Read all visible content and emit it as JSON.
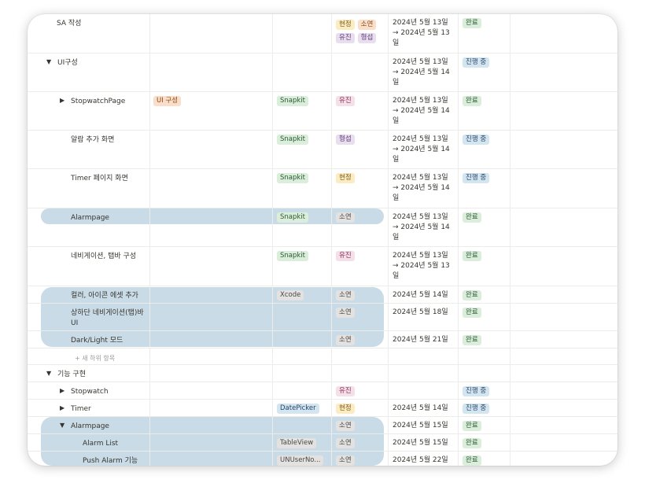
{
  "colors": {
    "highlight": "#c9dbe6",
    "tag_yellow_bg": "#fbecc2",
    "tag_yellow_fg": "#7a5b1a",
    "tag_orange_bg": "#fadec9",
    "tag_orange_fg": "#8a4a18",
    "tag_purple_bg": "#e8deee",
    "tag_purple_fg": "#5e3d7a",
    "tag_pink_bg": "#f5e0e9",
    "tag_pink_fg": "#8a2f56",
    "tag_green_bg": "#dbeddb",
    "tag_green_fg": "#2b5b33",
    "tag_blue_bg": "#d3e5ef",
    "tag_blue_fg": "#28456c",
    "tag_gray_bg": "#e3e2e0",
    "tag_gray_fg": "#4a4946"
  },
  "rows": [
    {
      "name": "SA 작성",
      "arrow": "",
      "c1": [],
      "c2": [],
      "c3": [
        {
          "t": "현정",
          "c": "yellow"
        },
        {
          "t": "소연",
          "c": "orange"
        },
        {
          "t": "유진",
          "c": "purple"
        },
        {
          "t": "형섭",
          "c": "purple"
        }
      ],
      "date": [
        "2024년 5월 13일",
        "→ 2024년 5월 13",
        "일"
      ],
      "status": {
        "t": "완료",
        "c": "green"
      }
    },
    {
      "name": "UI구성",
      "arrow": "▼",
      "c1": [],
      "c2": [],
      "c3": [],
      "date": [
        "2024년 5월 13일",
        "→ 2024년 5월 14",
        "일"
      ],
      "status": {
        "t": "진행 중",
        "c": "blue"
      }
    },
    {
      "name": "StopwatchPage",
      "arrow": "▶",
      "c1": [
        {
          "t": "UI 구성",
          "c": "orange"
        }
      ],
      "c2": [
        {
          "t": "Snapkit",
          "c": "green"
        }
      ],
      "c3": [
        {
          "t": "유진",
          "c": "pink"
        }
      ],
      "date": [
        "2024년 5월 13일",
        "→ 2024년 5월 14",
        "일"
      ],
      "status": {
        "t": "완료",
        "c": "green"
      }
    },
    {
      "name": "알람 추가 화면",
      "arrow": "",
      "c1": [],
      "c2": [
        {
          "t": "Snapkit",
          "c": "green"
        }
      ],
      "c3": [
        {
          "t": "형섭",
          "c": "purple"
        }
      ],
      "date": [
        "2024년 5월 13일",
        "→ 2024년 5월 14",
        "일"
      ],
      "status": {
        "t": "진행 중",
        "c": "blue"
      }
    },
    {
      "name": "Timer 페이지 화면",
      "arrow": "",
      "c1": [],
      "c2": [
        {
          "t": "Snapkit",
          "c": "green"
        }
      ],
      "c3": [
        {
          "t": "현정",
          "c": "yellow"
        }
      ],
      "date": [
        "2024년 5월 13일",
        "→ 2024년 5월 14",
        "일"
      ],
      "status": {
        "t": "진행 중",
        "c": "blue"
      }
    },
    {
      "name": "Alarmpage",
      "arrow": "",
      "c1": [],
      "c2": [
        {
          "t": "Snapkit",
          "c": "green"
        }
      ],
      "c3": [
        {
          "t": "소연",
          "c": "gray"
        }
      ],
      "date": [
        "2024년 5월 13일",
        "→ 2024년 5월 14",
        "일"
      ],
      "status": {
        "t": "완료",
        "c": "green"
      }
    },
    {
      "name": "네비게이션, 탭바 구성",
      "arrow": "",
      "c1": [],
      "c2": [
        {
          "t": "Snapkit",
          "c": "green"
        }
      ],
      "c3": [
        {
          "t": "유진",
          "c": "pink"
        }
      ],
      "date": [
        "2024년 5월 13일",
        "→ 2024년 5월 13",
        "일"
      ],
      "status": {
        "t": "완료",
        "c": "green"
      }
    },
    {
      "name": "컬러, 아이콘 에셋 추가",
      "arrow": "",
      "c1": [],
      "c2": [
        {
          "t": "Xcode",
          "c": "gray"
        }
      ],
      "c3": [
        {
          "t": "소연",
          "c": "gray"
        }
      ],
      "date": [
        "2024년 5월 14일"
      ],
      "status": {
        "t": "완료",
        "c": "green"
      }
    },
    {
      "name": "상하단 네비게이션(탭)바\nUI",
      "arrow": "",
      "c1": [],
      "c2": [],
      "c3": [
        {
          "t": "소연",
          "c": "gray"
        }
      ],
      "date": [
        "2024년 5월 18일"
      ],
      "status": {
        "t": "완료",
        "c": "green"
      }
    },
    {
      "name": "Dark/Light 모드",
      "arrow": "",
      "c1": [],
      "c2": [],
      "c3": [
        {
          "t": "소연",
          "c": "gray"
        }
      ],
      "date": [
        "2024년 5월 21일"
      ],
      "status": {
        "t": "완료",
        "c": "green"
      }
    },
    {
      "name": "+ 새 하위 항목",
      "arrow": "",
      "c1": [],
      "c2": [],
      "c3": [],
      "date": [],
      "status": null
    },
    {
      "name": "기능 구현",
      "arrow": "▼",
      "c1": [],
      "c2": [],
      "c3": [],
      "date": [],
      "status": null
    },
    {
      "name": "Stopwatch",
      "arrow": "▶",
      "c1": [],
      "c2": [],
      "c3": [
        {
          "t": "유진",
          "c": "pink"
        }
      ],
      "date": [],
      "status": {
        "t": "진행 중",
        "c": "blue"
      }
    },
    {
      "name": "Timer",
      "arrow": "▶",
      "c1": [],
      "c2": [
        {
          "t": "DatePicker",
          "c": "blue"
        }
      ],
      "c3": [
        {
          "t": "현정",
          "c": "yellow"
        }
      ],
      "date": [
        "2024년 5월 14일"
      ],
      "status": {
        "t": "진행 중",
        "c": "blue"
      }
    },
    {
      "name": "Alarmpage",
      "arrow": "▼",
      "c1": [],
      "c2": [],
      "c3": [
        {
          "t": "소연",
          "c": "gray"
        }
      ],
      "date": [
        "2024년 5월 15일"
      ],
      "status": {
        "t": "완료",
        "c": "green"
      }
    },
    {
      "name": "Alarm List",
      "arrow": "",
      "c1": [],
      "c2": [
        {
          "t": "TableView",
          "c": "gray"
        }
      ],
      "c3": [
        {
          "t": "소연",
          "c": "gray"
        }
      ],
      "date": [
        "2024년 5월 15일"
      ],
      "status": {
        "t": "완료",
        "c": "green"
      }
    },
    {
      "name": "Push Alarm 기능",
      "arrow": "",
      "c1": [],
      "c2": [
        {
          "t": "UNUserNo...",
          "c": "gray"
        }
      ],
      "c3": [
        {
          "t": "소연",
          "c": "gray"
        }
      ],
      "date": [
        "2024년 5월 22일"
      ],
      "status": {
        "t": "완료",
        "c": "green"
      }
    }
  ]
}
